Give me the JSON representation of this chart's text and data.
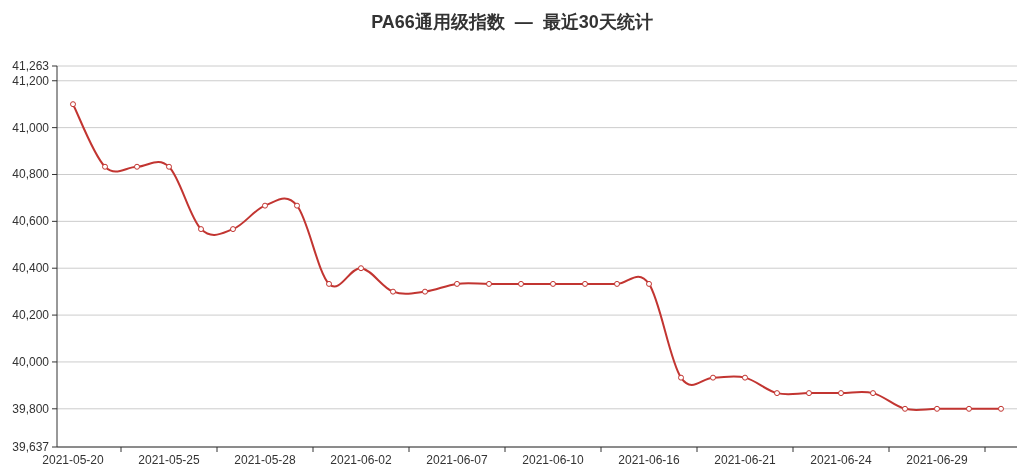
{
  "chart_data": {
    "type": "line",
    "title": "PA66通用级指数  —  最近30天统计",
    "categories": [
      "2021-05-20",
      null,
      null,
      "2021-05-25",
      null,
      null,
      "2021-05-28",
      null,
      null,
      "2021-06-02",
      null,
      null,
      "2021-06-07",
      null,
      null,
      "2021-06-10",
      null,
      null,
      "2021-06-16",
      null,
      null,
      "2021-06-21",
      null,
      null,
      "2021-06-24",
      null,
      null,
      "2021-06-29",
      null,
      null
    ],
    "series": [
      {
        "color": "#c23531",
        "values": [
          41100,
          40833,
          40833,
          40833,
          40567,
          40567,
          40667,
          40667,
          40333,
          40400,
          40300,
          40300,
          40333,
          40333,
          40333,
          40333,
          40333,
          40333,
          40333,
          39933,
          39933,
          39933,
          39867,
          39867,
          39867,
          39867,
          39800,
          39800,
          39800,
          39800
        ]
      }
    ],
    "ylim": [
      39637,
      41263
    ],
    "yticks": [
      {
        "value": 39637,
        "label": "39,637"
      },
      {
        "value": 39800,
        "label": "39,800"
      },
      {
        "value": 40000,
        "label": "40,000"
      },
      {
        "value": 40200,
        "label": "40,200"
      },
      {
        "value": 40400,
        "label": "40,400"
      },
      {
        "value": 40600,
        "label": "40,600"
      },
      {
        "value": 40800,
        "label": "40,800"
      },
      {
        "value": 41000,
        "label": "41,000"
      },
      {
        "value": 41200,
        "label": "41,200"
      },
      {
        "value": 41263,
        "label": "41,263"
      }
    ],
    "grid": "y",
    "marker": "circle"
  }
}
